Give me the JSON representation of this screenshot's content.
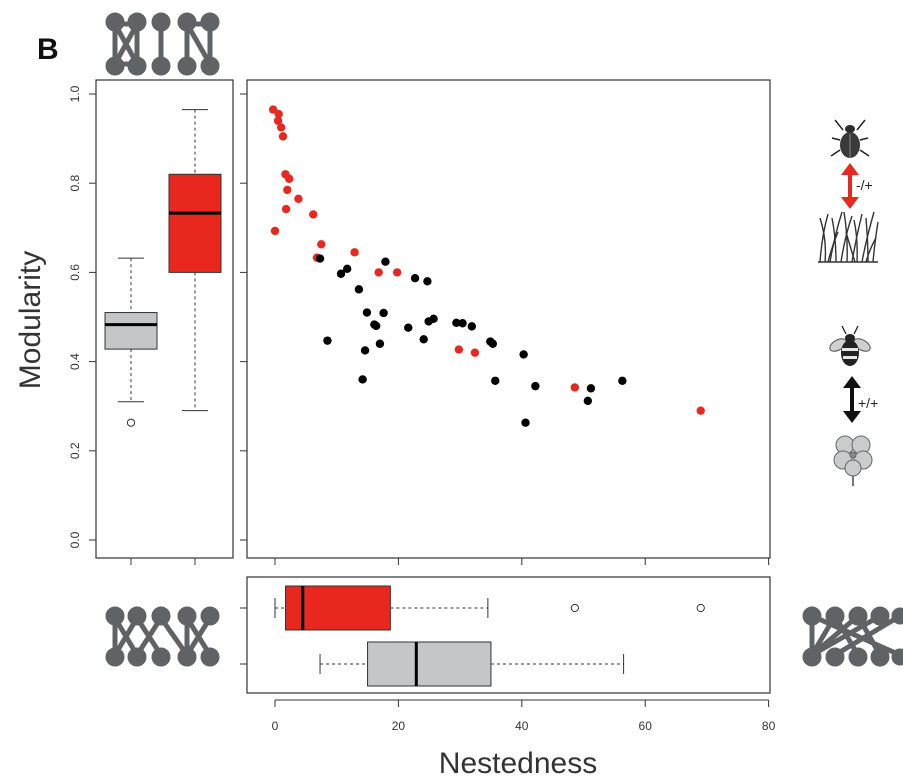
{
  "panel_label": "B",
  "colors": {
    "antagonistic": "#e8281e",
    "mutualistic": "#000000",
    "box_grey": "#c4c6c8",
    "icon_grey": "#5f6366"
  },
  "icons": {
    "top_network": "bipartite-network-modular-icon",
    "left_network": "bipartite-network-nested-icon",
    "right_network": "bipartite-network-highly-nested-icon",
    "antagonistic": {
      "top": "beetle-icon",
      "bottom": "grass-icon",
      "arrow": "double-arrow-red-icon",
      "label": "-/+"
    },
    "mutualistic": {
      "top": "bee-icon",
      "bottom": "flower-icon",
      "arrow": "double-arrow-black-icon",
      "label": "+/+"
    }
  },
  "chart_data": [
    {
      "type": "scatter",
      "title": "",
      "xlabel": "Nestedness",
      "ylabel": "Modularity",
      "xlim": [
        0,
        80
      ],
      "ylim": [
        0,
        1
      ],
      "xticks": [
        "0",
        "20",
        "40",
        "60",
        "80"
      ],
      "yticks": [
        "0.0",
        "0.2",
        "0.4",
        "0.6",
        "0.8",
        "1.0"
      ],
      "grid": false,
      "series": [
        {
          "color": "#e8281e",
          "points": [
            [
              -0.3,
              0.965
            ],
            [
              0.6,
              0.955
            ],
            [
              0.5,
              0.94
            ],
            [
              1.0,
              0.925
            ],
            [
              1.3,
              0.905
            ],
            [
              1.7,
              0.82
            ],
            [
              2.3,
              0.81
            ],
            [
              2.0,
              0.785
            ],
            [
              3.8,
              0.765
            ],
            [
              1.8,
              0.742
            ],
            [
              6.2,
              0.73
            ],
            [
              0.0,
              0.693
            ],
            [
              7.5,
              0.663
            ],
            [
              6.8,
              0.633
            ],
            [
              12.9,
              0.645
            ],
            [
              16.8,
              0.6
            ],
            [
              19.8,
              0.6
            ],
            [
              29.8,
              0.427
            ],
            [
              32.4,
              0.42
            ],
            [
              48.6,
              0.342
            ],
            [
              69.0,
              0.29
            ]
          ]
        },
        {
          "color": "#000000",
          "points": [
            [
              7.3,
              0.631
            ],
            [
              11.7,
              0.608
            ],
            [
              10.7,
              0.597
            ],
            [
              17.9,
              0.624
            ],
            [
              22.7,
              0.587
            ],
            [
              24.7,
              0.58
            ],
            [
              13.6,
              0.562
            ],
            [
              14.9,
              0.51
            ],
            [
              17.6,
              0.509
            ],
            [
              25.7,
              0.496
            ],
            [
              24.9,
              0.49
            ],
            [
              16.1,
              0.483
            ],
            [
              16.4,
              0.48
            ],
            [
              29.4,
              0.487
            ],
            [
              30.4,
              0.486
            ],
            [
              31.9,
              0.479
            ],
            [
              21.6,
              0.476
            ],
            [
              8.5,
              0.447
            ],
            [
              24.1,
              0.45
            ],
            [
              17.0,
              0.44
            ],
            [
              34.9,
              0.445
            ],
            [
              35.3,
              0.44
            ],
            [
              14.6,
              0.425
            ],
            [
              40.3,
              0.416
            ],
            [
              14.2,
              0.36
            ],
            [
              35.7,
              0.357
            ],
            [
              42.2,
              0.345
            ],
            [
              51.2,
              0.34
            ],
            [
              56.3,
              0.357
            ],
            [
              50.7,
              0.312
            ],
            [
              40.6,
              0.263
            ]
          ]
        }
      ]
    },
    {
      "type": "box",
      "orientation": "vertical",
      "ylim": [
        0,
        1
      ],
      "shares_y_axis_with": "scatter",
      "boxes": [
        {
          "color": "#c4c6c8",
          "whisker_low": 0.31,
          "q1": 0.428,
          "median": 0.483,
          "q3": 0.51,
          "whisker_high": 0.632,
          "outliers": [
            0.263
          ]
        },
        {
          "color": "#e8281e",
          "whisker_low": 0.29,
          "q1": 0.6,
          "median": 0.733,
          "q3": 0.82,
          "whisker_high": 0.965,
          "outliers": []
        }
      ]
    },
    {
      "type": "box",
      "orientation": "horizontal",
      "xlim": [
        0,
        80
      ],
      "shares_x_axis_with": "scatter",
      "boxes": [
        {
          "color": "#e8281e",
          "whisker_low": 0.0,
          "q1": 1.7,
          "median": 4.5,
          "q3": 18.7,
          "whisker_high": 34.5,
          "outliers": [
            48.6,
            69.0
          ]
        },
        {
          "color": "#c4c6c8",
          "whisker_low": 7.3,
          "q1": 15.0,
          "median": 22.9,
          "q3": 35.0,
          "whisker_high": 56.5,
          "outliers": []
        }
      ]
    }
  ]
}
